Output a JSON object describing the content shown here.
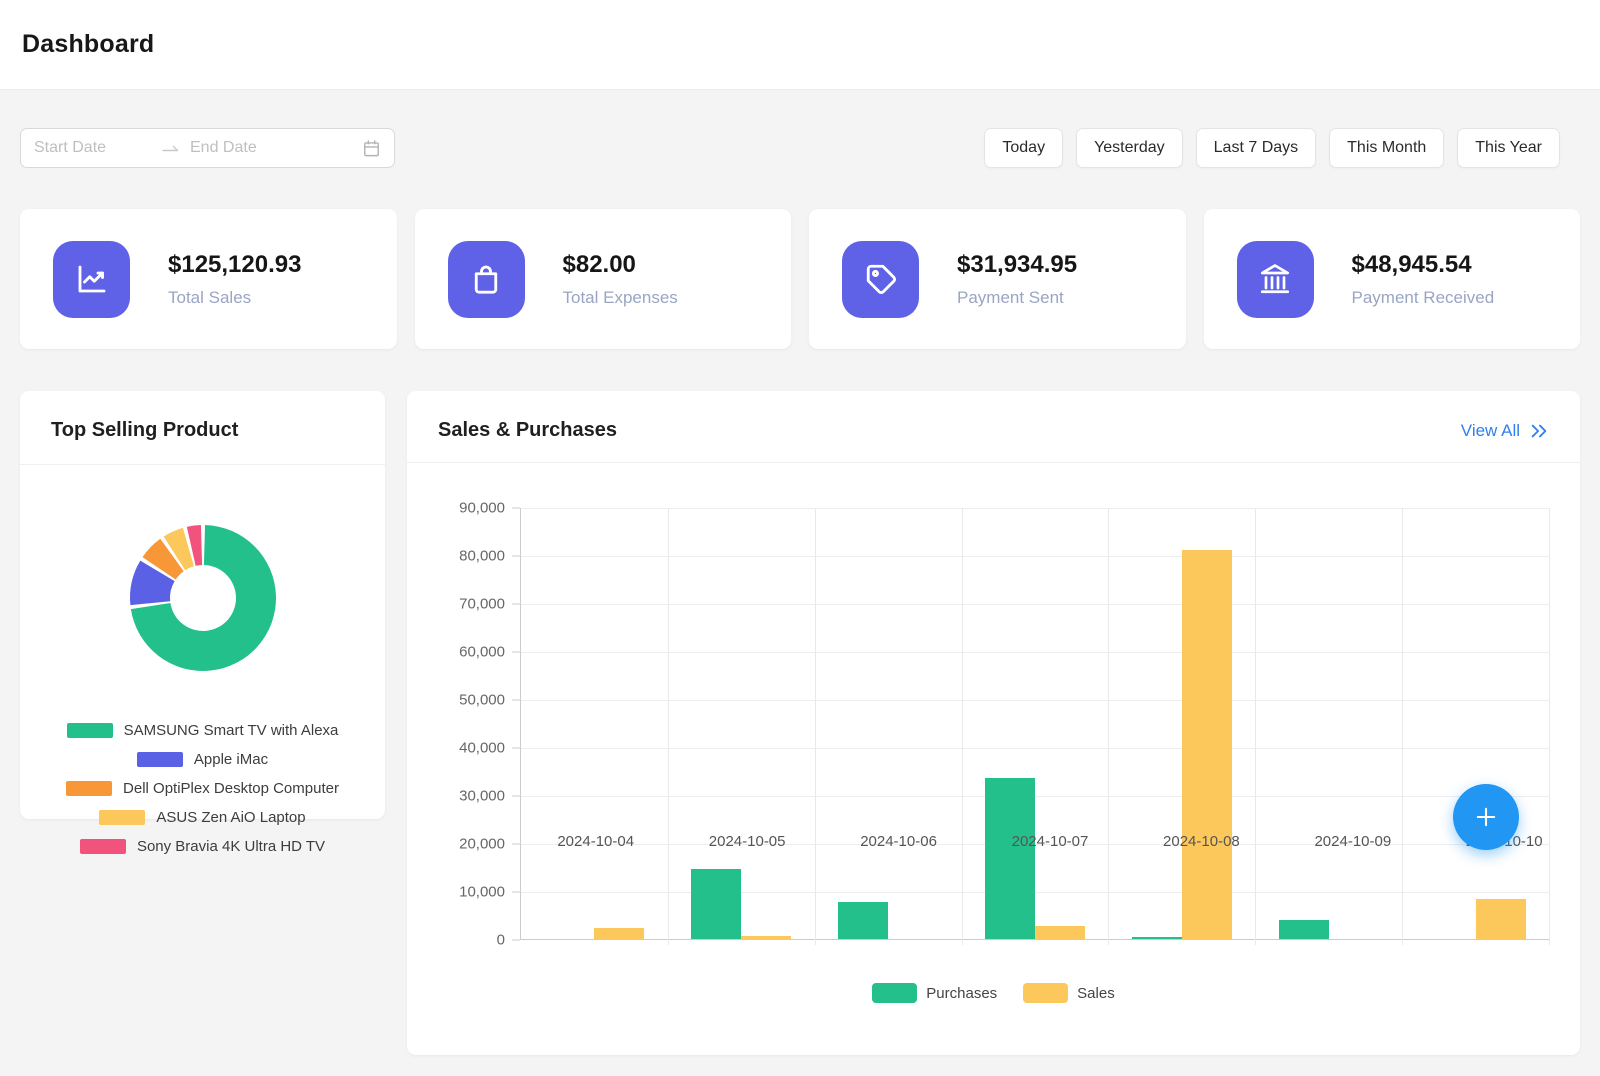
{
  "page": {
    "title": "Dashboard"
  },
  "toolbar": {
    "date_range": {
      "start_placeholder": "Start Date",
      "end_placeholder": "End Date"
    },
    "quick_filters": [
      "Today",
      "Yesterday",
      "Last 7 Days",
      "This Month",
      "This Year"
    ]
  },
  "stats": [
    {
      "icon": "chart-line-icon",
      "value": "$125,120.93",
      "label": "Total Sales"
    },
    {
      "icon": "shopping-bag-icon",
      "value": "$82.00",
      "label": "Total Expenses"
    },
    {
      "icon": "tag-icon",
      "value": "$31,934.95",
      "label": "Payment Sent"
    },
    {
      "icon": "bank-icon",
      "value": "$48,945.54",
      "label": "Payment Received"
    }
  ],
  "top_selling": {
    "title": "Top Selling Product"
  },
  "sales_purchases": {
    "title": "Sales & Purchases",
    "view_all_label": "View All"
  },
  "colors": {
    "accent": "#5f61e6",
    "green": "#24c08b",
    "yellow": "#fcc75b",
    "blue": "#5a61e4",
    "orange": "#f89738",
    "pink": "#f2537d",
    "link": "#2f80ed",
    "fab": "#2196f3"
  },
  "chart_data": [
    {
      "type": "pie",
      "title": "Top Selling Product",
      "labels": [
        "SAMSUNG Smart TV with Alexa",
        "Apple iMac",
        "Dell OptiPlex Desktop Computer",
        "ASUS Zen AiO Laptop",
        "Sony Bravia 4K Ultra HD TV"
      ],
      "values": [
        73,
        11,
        6.5,
        5.5,
        4
      ],
      "unit": "percent-estimated",
      "colors": [
        "#24c08b",
        "#5a61e4",
        "#f89738",
        "#fcc75b",
        "#f2537d"
      ],
      "legend_position": "bottom"
    },
    {
      "type": "bar",
      "title": "Sales & Purchases",
      "categories": [
        "2024-10-04",
        "2024-10-05",
        "2024-10-06",
        "2024-10-07",
        "2024-10-08",
        "2024-10-09",
        "2024-10-10"
      ],
      "series": [
        {
          "name": "Purchases",
          "color": "#24c08b",
          "values": [
            0,
            14500,
            7700,
            33500,
            400,
            3900,
            0
          ]
        },
        {
          "name": "Sales",
          "color": "#fcc75b",
          "values": [
            2200,
            700,
            0,
            2700,
            81000,
            0,
            8400
          ]
        }
      ],
      "ylim": [
        0,
        90000
      ],
      "ytick_labels": [
        "90,000",
        "80,000",
        "70,000",
        "60,000",
        "50,000",
        "40,000",
        "30,000",
        "20,000",
        "10,000",
        "0"
      ],
      "grid": true,
      "legend_position": "bottom"
    }
  ]
}
